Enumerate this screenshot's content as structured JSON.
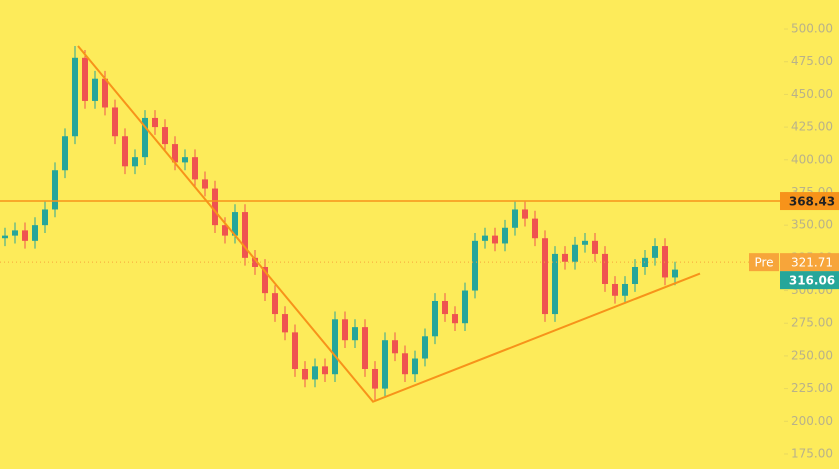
{
  "chart_data": {
    "type": "candlestick",
    "background": "#fdeb5a",
    "up_color": "#26a69a",
    "down_color": "#ef5350",
    "ylim": [
      163.5,
      522.2
    ],
    "yticks": [
      {
        "value": 175,
        "label": "175.00"
      },
      {
        "value": 200,
        "label": "200.00"
      },
      {
        "value": 225,
        "label": "225.00"
      },
      {
        "value": 250,
        "label": "250.00"
      },
      {
        "value": 275,
        "label": "275.00"
      },
      {
        "value": 300,
        "label": "300.00"
      },
      {
        "value": 325,
        "label": "325.00"
      },
      {
        "value": 350,
        "label": "350.00"
      },
      {
        "value": 375,
        "label": "375.00"
      },
      {
        "value": 400,
        "label": "400.00"
      },
      {
        "value": 425,
        "label": "425.00"
      },
      {
        "value": 450,
        "label": "450.00"
      },
      {
        "value": 475,
        "label": "475.00"
      },
      {
        "value": 500,
        "label": "500.00"
      }
    ],
    "open": [
      340,
      342,
      346,
      338,
      350,
      362,
      392,
      418,
      478,
      445,
      462,
      440,
      418,
      395,
      402,
      432,
      425,
      412,
      398,
      402,
      385,
      378,
      350,
      342,
      360,
      325,
      318,
      298,
      282,
      268,
      240,
      232,
      242,
      236,
      278,
      262,
      272,
      240,
      225,
      262,
      252,
      236,
      248,
      265,
      292,
      282,
      275,
      300,
      338,
      342,
      336,
      348,
      362,
      355,
      340,
      282,
      328,
      322,
      335,
      338,
      328,
      305,
      296,
      305,
      318,
      325,
      334,
      310
    ],
    "high": [
      348,
      352,
      352,
      356,
      368,
      398,
      424,
      487,
      484,
      468,
      468,
      446,
      424,
      408,
      438,
      438,
      431,
      418,
      408,
      408,
      391,
      384,
      356,
      366,
      366,
      331,
      324,
      304,
      288,
      274,
      246,
      248,
      248,
      284,
      284,
      278,
      278,
      246,
      268,
      268,
      258,
      254,
      271,
      298,
      298,
      288,
      306,
      344,
      348,
      348,
      354,
      368,
      368,
      361,
      346,
      334,
      334,
      341,
      344,
      344,
      334,
      311,
      311,
      324,
      331,
      340,
      340,
      322
    ],
    "low": [
      334,
      336,
      332,
      332,
      344,
      356,
      386,
      412,
      439,
      439,
      434,
      412,
      389,
      389,
      396,
      419,
      406,
      392,
      392,
      379,
      372,
      344,
      336,
      336,
      319,
      312,
      292,
      276,
      262,
      234,
      226,
      226,
      230,
      230,
      256,
      256,
      234,
      215,
      219,
      246,
      230,
      230,
      242,
      259,
      276,
      269,
      269,
      294,
      332,
      330,
      330,
      342,
      349,
      334,
      276,
      276,
      316,
      316,
      329,
      322,
      299,
      290,
      290,
      299,
      312,
      319,
      304,
      304
    ],
    "close": [
      342,
      346,
      338,
      350,
      362,
      392,
      418,
      478,
      445,
      462,
      440,
      418,
      395,
      402,
      432,
      425,
      412,
      398,
      402,
      385,
      378,
      350,
      342,
      360,
      325,
      318,
      298,
      282,
      268,
      240,
      232,
      242,
      236,
      278,
      262,
      272,
      240,
      225,
      262,
      252,
      236,
      248,
      265,
      292,
      282,
      275,
      300,
      338,
      342,
      336,
      348,
      362,
      355,
      340,
      282,
      328,
      322,
      335,
      338,
      328,
      305,
      296,
      305,
      318,
      325,
      334,
      310,
      316
    ],
    "hline": {
      "value": 368.43,
      "color": "#f7931a"
    },
    "pre": {
      "tag": "Pre",
      "value": 321.71,
      "color": "#f7a53a"
    },
    "last": {
      "value": 316.06,
      "color": "#26a69a"
    },
    "trendlines": [
      {
        "color": "#f7931a",
        "x": [
          7.3,
          36.8,
          69.5
        ],
        "y": [
          487,
          215,
          313
        ]
      }
    ]
  }
}
